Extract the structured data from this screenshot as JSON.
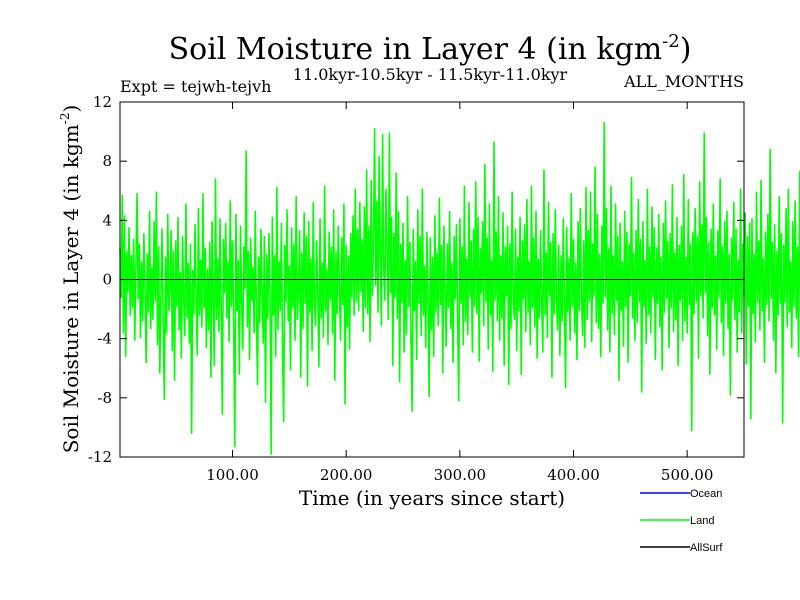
{
  "chart_data": {
    "type": "line",
    "title": "Soil Moisture in Layer 4 (in kgm",
    "title_sup": "-2",
    "title_end": ")",
    "experiment": "Expt = tejwh-tejvh",
    "period": "11.0kyr-10.5kyr - 11.5kyr-11.0kyr",
    "months": "ALL_MONTHS",
    "xlabel": "Time (in years since start)",
    "ylabel": "Soil Moisture in Layer 4 (in kgm",
    "ylabel_sup": "-2",
    "ylabel_end": ")",
    "xlim": [
      1,
      550
    ],
    "ylim": [
      -12,
      12
    ],
    "xticks": [
      100,
      200,
      300,
      400,
      500
    ],
    "xtick_labels": [
      "100.00",
      "200.00",
      "300.00",
      "400.00",
      "500.00"
    ],
    "yticks": [
      -12,
      -8,
      -4,
      0,
      4,
      8,
      12
    ],
    "ytick_labels": [
      "-12",
      "-8",
      "-4",
      "0",
      "4",
      "8",
      "12"
    ],
    "zero_line": true,
    "legend": [
      {
        "name": "Ocean",
        "color": "#0000ff"
      },
      {
        "name": "Land",
        "color": "#00ff00"
      },
      {
        "name": "AllSurf",
        "color": "#000000"
      }
    ],
    "series": [
      {
        "name": "Land",
        "color": "#00ff00",
        "x_start": 1,
        "x_step": 1,
        "values": [
          2.1,
          -1.2,
          5.7,
          -3.6,
          4.3,
          -5.2,
          1.9,
          -0.8,
          3.5,
          -2.4,
          1.6,
          -1.9,
          2.7,
          -4.1,
          0.9,
          5.8,
          -1.3,
          2.4,
          -3.9,
          1.2,
          -2.8,
          3.1,
          -0.6,
          -5.6,
          1.7,
          -2.2,
          4.6,
          -3.3,
          0.8,
          -2.7,
          3.9,
          -1.4,
          5.9,
          -4.4,
          2.2,
          -6.3,
          -1.1,
          3.4,
          -2.9,
          -8.1,
          1.5,
          -3.6,
          4.4,
          -2.1,
          -0.7,
          3.3,
          -4.8,
          1.9,
          -6.8,
          2.6,
          -1.8,
          4.2,
          -3.4,
          0.5,
          -5.3,
          2.9,
          -1.2,
          -3.8,
          5.1,
          -2.6,
          1.1,
          -4.3,
          2.4,
          -10.4,
          0.6,
          -2.3,
          3.7,
          -1.5,
          -5.1,
          4.8,
          -2.4,
          1.3,
          -3.2,
          5.8,
          -1.9,
          2.1,
          -4.6,
          0.7,
          -3.4,
          2.5,
          -6.6,
          3.9,
          -1.1,
          -5.8,
          6.8,
          -2.7,
          1.4,
          -3.5,
          4.1,
          -1.6,
          -9.1,
          2.7,
          -0.9,
          3.8,
          -2.6,
          1.2,
          -4.2,
          5.3,
          -1.8,
          2.6,
          -3.1,
          -11.3,
          4.4,
          -2.1,
          1.3,
          -6.4,
          3.6,
          -1.5,
          -4.7,
          2.2,
          -0.6,
          8.7,
          -3.2,
          1.9,
          -5.4,
          2.8,
          -1.4,
          0.8,
          -3.6,
          4.6,
          -2.3,
          -7.1,
          1.5,
          -2.9,
          3.4,
          -1.1,
          -4.3,
          2.9,
          -8.3,
          1.7,
          -2.6,
          3.1,
          -1.2,
          -11.8,
          4.2,
          -2.4,
          1.6,
          -5.2,
          6.2,
          -3.4,
          1.2,
          -2.1,
          3.8,
          -4.6,
          -9.6,
          2.3,
          -1.5,
          4.7,
          -2.8,
          0.9,
          -6.1,
          3.5,
          -1.9,
          2.4,
          -4.1,
          5.6,
          -2.7,
          -0.8,
          3.3,
          -6.6,
          1.8,
          -3.3,
          4.5,
          -1.6,
          2.9,
          -7.2,
          3.9,
          -2.2,
          1.4,
          -4.8,
          5.2,
          -1.3,
          -3.1,
          2.6,
          -0.9,
          -5.9,
          4.1,
          -2.6,
          1.1,
          -3.9,
          6.3,
          -2.1,
          0.7,
          -4.4,
          3.2,
          -1.4,
          2.2,
          -3.6,
          4.7,
          -6.8,
          1.9,
          -2.3,
          3.6,
          -0.5,
          -4.1,
          2.8,
          -1.7,
          5.1,
          -8.4,
          2.3,
          -3.2,
          1.6,
          -4.7,
          3.1,
          -1.2,
          4.3,
          -2.4,
          6.1,
          -1.5,
          3.4,
          -2.1,
          5.2,
          -0.8,
          2.7,
          -3.5,
          4.9,
          -1.9,
          7.4,
          -2.3,
          3.6,
          -4.2,
          6.7,
          -1.1,
          2.5,
          10.2,
          -0.4,
          5.3,
          -2.2,
          8.3,
          1.6,
          -3.1,
          9.8,
          0.8,
          -1.4,
          6.1,
          2.3,
          -2.7,
          9.9,
          -0.9,
          4.2,
          -5.8,
          3.1,
          -1.2,
          7.2,
          -2.6,
          4.6,
          -6.9,
          2.4,
          -1.5,
          3.8,
          -4.9,
          1.3,
          -3.7,
          5.6,
          -1.8,
          2.5,
          -4.2,
          -8.9,
          3.4,
          -2.1,
          1.2,
          -5.4,
          4.7,
          -1.6,
          2.9,
          -3.8,
          6.1,
          -2.4,
          0.9,
          -4.6,
          3.2,
          -1.1,
          -7.9,
          2.8,
          -3.4,
          1.5,
          -5.2,
          4.3,
          -2.2,
          1.8,
          -3.1,
          5.5,
          -1.7,
          2.3,
          -6.3,
          3.6,
          -0.8,
          -4.5,
          2.4,
          -1.9,
          4.6,
          -3.3,
          1.1,
          -5.6,
          2.9,
          -1.3,
          3.7,
          -2.5,
          -8.2,
          4.1,
          -1.6,
          2.2,
          -4.4,
          6.3,
          -2.8,
          1.4,
          -3.7,
          5.2,
          -1.2,
          2.6,
          -4.9,
          3.4,
          -1.8,
          6.6,
          -2.3,
          4.2,
          -5.5,
          2.1,
          -0.9,
          3.9,
          -3.1,
          7.8,
          -1.5,
          2.8,
          -4.7,
          5.1,
          -2.4,
          1.3,
          -6.2,
          9.3,
          -1.4,
          3.2,
          -2.8,
          5.6,
          -4.1,
          1.6,
          -2.6,
          4.5,
          -5.8,
          2.2,
          -1.1,
          3.6,
          -7.1,
          2.4,
          -3.3,
          5.9,
          -1.6,
          -2.7,
          3.4,
          -4.8,
          1.5,
          -2.1,
          4.2,
          -6.4,
          2.6,
          -1.3,
          3.7,
          -3.5,
          5.4,
          -2.2,
          1.2,
          -4.4,
          6.3,
          -1.9,
          2.8,
          -3.2,
          4.6,
          -5.3,
          1.4,
          -2.6,
          3.3,
          -1.5,
          -4.9,
          7.4,
          -2.4,
          1.8,
          -3.9,
          5.2,
          -1.1,
          2.5,
          -6.6,
          3.1,
          -2.3,
          4.7,
          -1.4,
          -3.4,
          2.3,
          -5.1,
          1.6,
          -2.8,
          4.1,
          -1.6,
          -7.3,
          3.5,
          -2.2,
          1.4,
          -4.1,
          5.8,
          -1.8,
          2.7,
          -3.6,
          1.1,
          -5.4,
          3.9,
          -2.1,
          4.8,
          -1.3,
          -3.8,
          2.6,
          -4.6,
          6.2,
          -2.7,
          3.3,
          -1.5,
          5.9,
          -4.2,
          2.4,
          -1.1,
          7.6,
          -2.9,
          4.4,
          -3.3,
          1.7,
          -5.2,
          3.6,
          -1.6,
          10.6,
          -1.2,
          4.8,
          -3.4,
          2.1,
          -4.9,
          6.3,
          -2.3,
          1.6,
          -3.7,
          5.1,
          -1.4,
          2.9,
          -6.8,
          3.8,
          -2.1,
          1.2,
          -4.5,
          4.6,
          -1.8,
          3.2,
          -5.6,
          2.4,
          -1.1,
          6.9,
          -2.6,
          1.8,
          -4.1,
          3.3,
          -2.9,
          5.4,
          -1.5,
          2.7,
          -7.6,
          3.9,
          -1.8,
          1.3,
          -4.3,
          6.1,
          -2.4,
          2.2,
          -3.6,
          4.9,
          -1.2,
          3.5,
          -5.4,
          2.1,
          -1.6,
          4.4,
          -3.2,
          1.5,
          -6.1,
          3.8,
          -2.2,
          5.3,
          -1.3,
          2.6,
          -4.6,
          3.1,
          -1.9,
          6.4,
          -3.5,
          1.8,
          -2.7,
          4.2,
          -5.8,
          2.3,
          -1.4,
          3.6,
          -4.1,
          7.1,
          -2.8,
          1.5,
          -3.6,
          5.4,
          -1.7,
          2.4,
          -10.2,
          3.2,
          -2.3,
          4.8,
          -1.5,
          2.9,
          -5.3,
          6.6,
          -1.1,
          3.7,
          -2.6,
          9.9,
          -0.9,
          4.2,
          -3.8,
          2.5,
          -6.4,
          3.4,
          -1.9,
          5.1,
          -2.4,
          1.6,
          -4.7,
          3.3,
          -1.2,
          6.8,
          -2.9,
          2.2,
          -5.1,
          3.9,
          -1.6,
          4.6,
          -3.3,
          1.7,
          -7.8,
          2.8,
          -1.4,
          5.2,
          -2.7,
          3.4,
          -4.9,
          1.3,
          -2.2,
          6.1,
          -3.6,
          2.4,
          -1.1,
          4.5,
          -5.7,
          2.9,
          -1.8,
          3.8,
          -9.4,
          4.1,
          -2.3,
          1.7,
          -4.2,
          5.9,
          -1.5,
          2.6,
          -3.4,
          6.7,
          -2.1,
          1.4,
          -5.6,
          3.2,
          -1.7,
          4.4,
          -2.8,
          8.8,
          -1.3,
          2.5,
          -4.1,
          3.7,
          -6.3,
          1.9,
          -2.4,
          5.6,
          -1.6,
          3.1,
          -9.7,
          2.3,
          -1.5,
          4.8,
          -3.2,
          6.1,
          -2.2,
          1.2,
          -4.6,
          3.9,
          -1.8,
          5.3,
          -2.6,
          2.2,
          -5.2,
          7.3,
          -1.4,
          3.5,
          -2.9,
          4.6,
          -1.1,
          2.8,
          -6.6,
          4.9,
          -2.4,
          1.6,
          -3.7,
          6.2,
          -1.9,
          3.3,
          -4.3,
          2.1,
          -1.3,
          5.4,
          -3.1,
          2.6,
          -7.4,
          3.8,
          -1.6,
          4.9,
          -2.7,
          6.6,
          -1.2,
          8.1,
          -2.3,
          3.4,
          -4.8,
          7.6,
          -1.5,
          2.2,
          10.1,
          -3.2,
          6.4,
          -1.8,
          -7.9,
          2.5,
          -5.1,
          3.3,
          -6.2,
          1.4,
          -3.6,
          4.1
        ]
      }
    ]
  }
}
